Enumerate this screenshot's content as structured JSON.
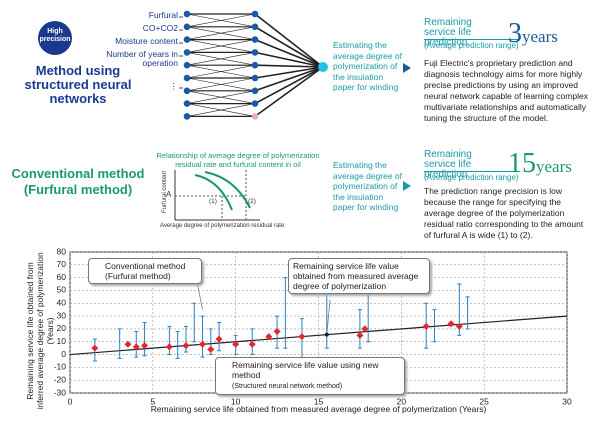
{
  "neural_method": {
    "badge": "High precision",
    "title": "Method using structured neural networks",
    "inputs": [
      "Furfural",
      "CO+CO2",
      "Moisture content",
      "Number of years in operation",
      "⋮"
    ],
    "estimate": "Estimating the average degree of polymerization of the insulation paper for winding",
    "result_label": "Remaining service life prediction",
    "result_sub": "(Average prediction range)",
    "result_value": 3,
    "result_unit": "years",
    "description": "Fuji Electric's proprietary prediction and diagnosis technology aims for more highly precise predictions by using an improved neural network capable of learning complex multivariate relationships and automatically tuning the structure of the model."
  },
  "conventional_method": {
    "title": "Conventional method (Furfural method)",
    "graph_caption": "Relationship of average degree of polymerization residual rate and furfural content in oil",
    "graph_y_label": "Furfural content",
    "graph_x_label": "Average degree of polymerization residual rate",
    "graph_level": "A",
    "graph_range_low": "(1)",
    "graph_range_high": "(2)",
    "estimate": "Estimating the average degree of polymerization of the insulation paper for winding",
    "result_label": "Remaining service life prediction",
    "result_sub": "(Average prediction range)",
    "result_value": 15,
    "result_unit": "years",
    "description": "The prediction range precision is low because the range for specifying the average degree of the polymerization residual ratio corresponding to the amount of furfural A is wide (1) to (2)."
  },
  "chart_data": {
    "type": "scatter",
    "xlabel": "Remaining service life obtained from measured average degree of polymerization (Years)",
    "ylabel": "Remaining service life obtained from inferred average degree of polymerization (Years)",
    "xlim": [
      0,
      30
    ],
    "ylim": [
      -30,
      80
    ],
    "xticks": [
      0,
      5,
      10,
      15,
      20,
      25,
      30
    ],
    "yticks": [
      -30,
      -20,
      -10,
      0,
      10,
      20,
      30,
      40,
      50,
      60,
      70,
      80
    ],
    "grid": true,
    "reference_line": {
      "x": [
        0,
        30
      ],
      "y": [
        0,
        30
      ],
      "color": "#222222",
      "label": "Remaining service life value obtained from measured average degree of polymerization"
    },
    "series": [
      {
        "name": "Conventional method (Furfural method)",
        "type": "errorbar",
        "color": "#2a7fc4",
        "x": [
          1.5,
          3,
          4,
          4.5,
          6,
          6.5,
          7,
          7.5,
          8,
          8.5,
          9,
          10,
          11,
          12.5,
          13,
          14,
          15.5,
          17.5,
          18,
          21.5,
          22,
          23.5,
          24
        ],
        "low": [
          -5,
          -3,
          -2,
          -1,
          0,
          -3,
          2,
          10,
          -2,
          0,
          3,
          0,
          0,
          5,
          5,
          -5,
          5,
          5,
          10,
          5,
          10,
          15,
          20
        ],
        "high": [
          12,
          20,
          18,
          25,
          22,
          18,
          22,
          40,
          30,
          20,
          25,
          15,
          20,
          30,
          60,
          28,
          50,
          35,
          60,
          40,
          35,
          55,
          45
        ]
      },
      {
        "name": "Remaining service life value using new method",
        "note": "(Structured neural network method)",
        "type": "scatter",
        "color": "#e0282e",
        "x": [
          1.5,
          3.5,
          4,
          4.5,
          6,
          7,
          8,
          8.5,
          9,
          10,
          11,
          12,
          12.5,
          14,
          17.5,
          17.8,
          21.5,
          23,
          23.5
        ],
        "values": [
          5,
          8,
          6,
          7,
          6,
          7,
          8,
          4,
          12,
          8,
          8,
          14,
          18,
          14,
          15,
          20,
          22,
          24,
          22
        ]
      }
    ]
  }
}
